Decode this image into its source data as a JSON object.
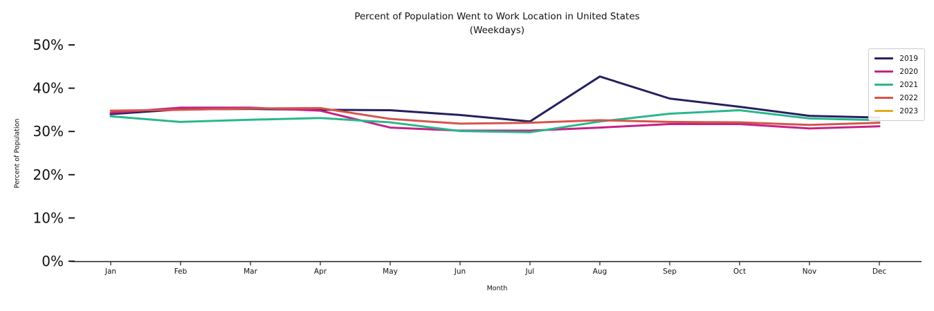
{
  "title": {
    "line1": "Percent of Population Went to Work Location in United States",
    "line2": "(Weekdays)"
  },
  "axes": {
    "xlabel": "Month",
    "ylabel": "Percent of Population"
  },
  "chart_data": {
    "type": "line",
    "title": "Percent of Population Went to Work Location in United States (Weekdays)",
    "xlabel": "Month",
    "ylabel": "Percent of Population",
    "categories": [
      "Jan",
      "Feb",
      "Mar",
      "Apr",
      "May",
      "Jun",
      "Jul",
      "Aug",
      "Sep",
      "Oct",
      "Nov",
      "Dec"
    ],
    "series": [
      {
        "name": "2019",
        "color": "#24205f",
        "values": [
          34.0,
          35.1,
          35.2,
          35.0,
          34.9,
          33.8,
          32.3,
          42.7,
          37.6,
          35.7,
          33.6,
          33.2
        ]
      },
      {
        "name": "2020",
        "color": "#c42286",
        "values": [
          34.3,
          35.5,
          35.5,
          34.8,
          30.9,
          30.2,
          30.2,
          30.9,
          31.7,
          31.7,
          30.7,
          31.2
        ]
      },
      {
        "name": "2021",
        "color": "#28b78d",
        "values": [
          33.5,
          32.2,
          32.7,
          33.1,
          32.1,
          30.1,
          29.8,
          32.3,
          34.1,
          34.9,
          33.0,
          32.6
        ]
      },
      {
        "name": "2022",
        "color": "#d5544a",
        "values": [
          34.8,
          35.0,
          35.3,
          35.4,
          32.9,
          31.8,
          32.0,
          32.6,
          32.2,
          32.1,
          31.5,
          32.0
        ]
      },
      {
        "name": "2023",
        "color": "#dfae1c",
        "values": []
      }
    ],
    "ylim": [
      0,
      50
    ],
    "yticks": [
      {
        "value": 0,
        "label": "0%"
      },
      {
        "value": 10,
        "label": "10%"
      },
      {
        "value": 20,
        "label": "20%"
      },
      {
        "value": 30,
        "label": "30%"
      },
      {
        "value": 40,
        "label": "40%"
      },
      {
        "value": 50,
        "label": "50%"
      }
    ],
    "grid": false,
    "legend_position": "upper right"
  }
}
